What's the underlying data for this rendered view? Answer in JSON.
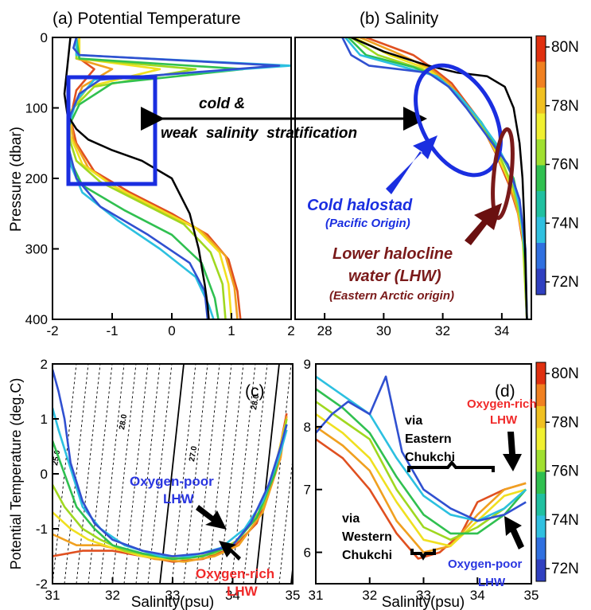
{
  "chart_data": [
    {
      "panel": "a",
      "type": "line",
      "title": "(a) Potential Temperature",
      "ylabel": "Pressure (dbar)",
      "xlim": [
        -2,
        2
      ],
      "ylim": [
        400,
        0
      ],
      "xticks": [
        "-2",
        "-1",
        "0",
        "1",
        "2"
      ],
      "yticks": [
        "0",
        "100",
        "200",
        "300",
        "400"
      ],
      "series": [
        {
          "color": "#000000",
          "x": [
            -1.7,
            -1.75,
            -1.8,
            -1.75,
            -1.6,
            -1.4,
            -1.0,
            -0.5,
            0.0,
            0.3,
            0.45,
            0.55,
            0.6,
            0.62
          ],
          "y": [
            0,
            40,
            80,
            110,
            130,
            145,
            160,
            175,
            200,
            250,
            300,
            350,
            380,
            400
          ]
        },
        {
          "color": "#3050d0",
          "x": [
            -1.6,
            -1.65,
            -1.55,
            1.8,
            -1.2,
            -1.55,
            -1.7,
            -1.75,
            -1.6,
            -1.2,
            -0.4,
            0.3,
            0.55,
            0.6
          ],
          "y": [
            0,
            15,
            25,
            40,
            60,
            80,
            110,
            150,
            200,
            240,
            280,
            320,
            360,
            400
          ]
        },
        {
          "color": "#2cc0e0",
          "x": [
            -1.6,
            -1.6,
            2.0,
            -1.3,
            -1.6,
            -1.75,
            -1.7,
            -1.5,
            -0.9,
            -0.2,
            0.4,
            0.62,
            0.7
          ],
          "y": [
            0,
            25,
            40,
            60,
            90,
            130,
            180,
            220,
            260,
            300,
            340,
            380,
            400
          ]
        },
        {
          "color": "#30c050",
          "x": [
            -1.6,
            -1.55,
            1.2,
            -1.0,
            -1.55,
            -1.75,
            -1.7,
            -1.5,
            -0.8,
            0.0,
            0.5,
            0.72,
            0.78
          ],
          "y": [
            0,
            30,
            45,
            65,
            95,
            130,
            175,
            210,
            245,
            280,
            320,
            370,
            400
          ]
        },
        {
          "color": "#a0d820",
          "x": [
            -1.6,
            -1.6,
            0.4,
            -1.3,
            -1.65,
            -1.75,
            -1.6,
            -1.2,
            -0.5,
            0.2,
            0.65,
            0.85,
            0.9
          ],
          "y": [
            0,
            30,
            45,
            70,
            100,
            135,
            175,
            205,
            235,
            265,
            305,
            350,
            400
          ]
        },
        {
          "color": "#f0e020",
          "x": [
            -1.55,
            -1.55,
            -0.2,
            -1.4,
            -1.7,
            -1.7,
            -1.5,
            -1.0,
            -0.3,
            0.4,
            0.8,
            0.95,
            1.0
          ],
          "y": [
            0,
            30,
            45,
            70,
            105,
            140,
            180,
            210,
            240,
            270,
            305,
            350,
            400
          ]
        },
        {
          "color": "#f0a020",
          "x": [
            -1.55,
            -1.6,
            -1.0,
            -1.5,
            -1.7,
            -1.65,
            -1.4,
            -0.9,
            -0.2,
            0.5,
            0.9,
            1.05,
            1.1
          ],
          "y": [
            0,
            30,
            45,
            70,
            110,
            145,
            185,
            215,
            245,
            275,
            310,
            355,
            400
          ]
        },
        {
          "color": "#e05020",
          "x": [
            -1.6,
            -1.55,
            -1.3,
            -1.6,
            -1.7,
            -1.6,
            -1.3,
            -0.7,
            0.0,
            0.6,
            0.95,
            1.1,
            1.15
          ],
          "y": [
            0,
            30,
            45,
            75,
            115,
            150,
            190,
            220,
            250,
            280,
            315,
            360,
            400
          ]
        }
      ],
      "annotations": []
    },
    {
      "panel": "b",
      "type": "line",
      "title": "(b) Salinity",
      "xlim": [
        27,
        35
      ],
      "ylim": [
        400,
        0
      ],
      "xticks": [
        "28",
        "30",
        "32",
        "34"
      ],
      "series": [
        {
          "color": "#000000",
          "x": [
            28.9,
            30.0,
            31.5,
            32.5,
            33.5,
            34.1,
            34.4,
            34.6,
            34.7,
            34.75,
            34.8,
            34.85
          ],
          "y": [
            0,
            20,
            40,
            50,
            55,
            70,
            100,
            150,
            200,
            250,
            320,
            400
          ]
        },
        {
          "color": "#3050d0",
          "x": [
            28.6,
            28.9,
            29.5,
            31.5,
            32.2,
            32.8,
            33.5,
            34.2,
            34.6,
            34.8,
            34.85
          ],
          "y": [
            0,
            25,
            40,
            50,
            70,
            100,
            140,
            180,
            230,
            300,
            400
          ]
        },
        {
          "color": "#2cc0e0",
          "x": [
            28.7,
            29.2,
            30.5,
            31.8,
            32.5,
            33.2,
            33.8,
            34.3,
            34.6,
            34.8,
            34.85
          ],
          "y": [
            0,
            25,
            40,
            55,
            80,
            115,
            150,
            190,
            240,
            310,
            400
          ]
        },
        {
          "color": "#30c050",
          "x": [
            28.8,
            29.4,
            31.0,
            31.9,
            32.6,
            33.3,
            33.9,
            34.4,
            34.65,
            34.8,
            34.85
          ],
          "y": [
            0,
            25,
            42,
            58,
            85,
            120,
            160,
            200,
            250,
            320,
            400
          ]
        },
        {
          "color": "#a0d820",
          "x": [
            28.9,
            29.8,
            31.3,
            32.0,
            32.8,
            33.5,
            34.0,
            34.4,
            34.7,
            34.85
          ],
          "y": [
            0,
            25,
            45,
            62,
            95,
            135,
            175,
            215,
            270,
            400
          ]
        },
        {
          "color": "#f0e020",
          "x": [
            29.0,
            30.2,
            31.5,
            32.1,
            33.0,
            33.6,
            34.1,
            34.5,
            34.7,
            34.85
          ],
          "y": [
            0,
            25,
            45,
            65,
            105,
            145,
            190,
            230,
            280,
            400
          ]
        },
        {
          "color": "#f0a020",
          "x": [
            29.2,
            30.6,
            31.6,
            32.2,
            33.1,
            33.7,
            34.2,
            34.5,
            34.75,
            34.85
          ],
          "y": [
            0,
            25,
            45,
            65,
            110,
            155,
            200,
            240,
            290,
            400
          ]
        },
        {
          "color": "#e05020",
          "x": [
            29.4,
            31.0,
            31.7,
            32.3,
            33.2,
            33.8,
            34.25,
            34.55,
            34.75,
            34.85
          ],
          "y": [
            0,
            25,
            45,
            65,
            115,
            165,
            210,
            250,
            300,
            400
          ]
        }
      ],
      "annotations": [
        {
          "text": "cold &",
          "color": "#000000"
        },
        {
          "text": "weak  salinity  stratification",
          "color": "#000000"
        },
        {
          "text": "Cold halostad",
          "color": "#1a2ee0"
        },
        {
          "text": "(Pacific Origin)",
          "color": "#1a2ee0"
        },
        {
          "text": "Lower halocline",
          "color": "#7a1a1a"
        },
        {
          "text": "water (LHW)",
          "color": "#7a1a1a"
        },
        {
          "text": "(Eastern Arctic origin)",
          "color": "#7a1a1a"
        }
      ]
    },
    {
      "panel": "c",
      "type": "line",
      "ylabel": "Potential Temperature (deg.C)",
      "xlabel": "Salinity(psu)",
      "tag": "(c)",
      "xlim": [
        31,
        35
      ],
      "ylim": [
        -2,
        2
      ],
      "xticks": [
        "31",
        "32",
        "33",
        "34",
        "35"
      ],
      "yticks": [
        "-2",
        "-1",
        "0",
        "1",
        "2"
      ],
      "isopycnal_labels": [
        "25.0",
        "28.0",
        "27.0",
        "28.0"
      ],
      "series": [
        {
          "color": "#3050d0",
          "x": [
            31.0,
            31.1,
            31.2,
            31.3,
            31.5,
            31.7,
            32.0,
            32.5,
            33.0,
            33.5,
            34.0,
            34.3,
            34.6,
            34.8,
            34.9
          ],
          "y": [
            1.9,
            1.5,
            1.0,
            0.2,
            -0.5,
            -0.9,
            -1.2,
            -1.4,
            -1.5,
            -1.45,
            -1.3,
            -0.9,
            -0.2,
            0.5,
            0.9
          ]
        },
        {
          "color": "#2cc0e0",
          "x": [
            31.0,
            31.1,
            31.3,
            31.5,
            31.8,
            32.2,
            32.8,
            33.3,
            33.8,
            34.2,
            34.5,
            34.8,
            34.9
          ],
          "y": [
            1.2,
            0.8,
            0.1,
            -0.6,
            -1.0,
            -1.3,
            -1.5,
            -1.5,
            -1.35,
            -1.0,
            -0.5,
            0.4,
            0.8
          ]
        },
        {
          "color": "#30c050",
          "x": [
            31.0,
            31.2,
            31.4,
            31.7,
            32.0,
            32.5,
            33.0,
            33.5,
            34.0,
            34.4,
            34.7,
            34.9
          ],
          "y": [
            0.6,
            0.0,
            -0.6,
            -1.0,
            -1.3,
            -1.45,
            -1.55,
            -1.5,
            -1.3,
            -0.8,
            0.0,
            0.9
          ]
        },
        {
          "color": "#a0d820",
          "x": [
            31.0,
            31.2,
            31.5,
            31.8,
            32.2,
            32.7,
            33.2,
            33.7,
            34.1,
            34.5,
            34.8,
            34.9
          ],
          "y": [
            -0.2,
            -0.6,
            -1.0,
            -1.2,
            -1.4,
            -1.5,
            -1.55,
            -1.45,
            -1.2,
            -0.6,
            0.4,
            1.0
          ]
        },
        {
          "color": "#f0e020",
          "x": [
            31.0,
            31.3,
            31.6,
            32.0,
            32.5,
            33.0,
            33.5,
            34.0,
            34.4,
            34.7,
            34.9
          ],
          "y": [
            -0.7,
            -1.0,
            -1.2,
            -1.35,
            -1.5,
            -1.55,
            -1.5,
            -1.3,
            -0.8,
            0.1,
            1.0
          ]
        },
        {
          "color": "#f0a020",
          "x": [
            31.0,
            31.4,
            31.8,
            32.2,
            32.7,
            33.2,
            33.7,
            34.1,
            34.5,
            34.8,
            34.9
          ],
          "y": [
            -1.1,
            -1.3,
            -1.3,
            -1.4,
            -1.55,
            -1.6,
            -1.5,
            -1.3,
            -0.7,
            0.3,
            1.05
          ]
        },
        {
          "color": "#e05020",
          "x": [
            31.0,
            31.5,
            32.0,
            32.5,
            33.0,
            33.5,
            34.0,
            34.4,
            34.7,
            34.9
          ],
          "y": [
            -1.5,
            -1.4,
            -1.4,
            -1.5,
            -1.6,
            -1.55,
            -1.35,
            -0.9,
            0.0,
            1.1
          ]
        }
      ],
      "annotations": [
        {
          "text": "Oxygen-poor",
          "color": "#2a36e0"
        },
        {
          "text": "LHW",
          "color": "#2a36e0"
        },
        {
          "text": "Oxygen-rich",
          "color": "#f02a2a"
        },
        {
          "text": "LHW",
          "color": "#f02a2a"
        }
      ]
    },
    {
      "panel": "d",
      "type": "line",
      "xlabel": "Salinity(psu)",
      "tag": "(d)",
      "xlim": [
        31,
        35
      ],
      "ylim": [
        5.5,
        9
      ],
      "xticks": [
        "31",
        "32",
        "33",
        "34",
        "35"
      ],
      "yticks": [
        "6",
        "7",
        "8",
        "9"
      ],
      "series": [
        {
          "color": "#3050d0",
          "x": [
            31.0,
            31.3,
            31.6,
            32.0,
            32.3,
            32.6,
            33.0,
            33.5,
            34.0,
            34.5,
            34.9
          ],
          "y": [
            7.9,
            8.2,
            8.4,
            8.2,
            8.8,
            7.6,
            7.0,
            6.7,
            6.5,
            6.6,
            6.8
          ]
        },
        {
          "color": "#2cc0e0",
          "x": [
            31.0,
            31.5,
            32.0,
            32.5,
            33.0,
            33.5,
            34.0,
            34.5,
            34.9
          ],
          "y": [
            8.8,
            8.5,
            8.2,
            7.5,
            6.9,
            6.6,
            6.5,
            6.7,
            7.0
          ]
        },
        {
          "color": "#30c050",
          "x": [
            31.0,
            31.5,
            32.0,
            32.5,
            33.0,
            33.5,
            34.0,
            34.5,
            34.9
          ],
          "y": [
            8.6,
            8.3,
            7.9,
            7.2,
            6.6,
            6.3,
            6.3,
            6.6,
            7.0
          ]
        },
        {
          "color": "#a0d820",
          "x": [
            31.0,
            31.5,
            32.0,
            32.5,
            33.0,
            33.5,
            34.0,
            34.5,
            34.9
          ],
          "y": [
            8.4,
            8.1,
            7.8,
            7.0,
            6.4,
            6.2,
            6.4,
            6.7,
            7.0
          ]
        },
        {
          "color": "#f0e020",
          "x": [
            31.0,
            31.5,
            32.0,
            32.5,
            33.0,
            33.5,
            34.0,
            34.5,
            34.9
          ],
          "y": [
            8.2,
            7.9,
            7.5,
            6.8,
            6.2,
            6.1,
            6.5,
            6.9,
            7.0
          ]
        },
        {
          "color": "#f0a020",
          "x": [
            31.0,
            31.5,
            32.0,
            32.5,
            33.0,
            33.5,
            34.0,
            34.5,
            34.9
          ],
          "y": [
            8.0,
            7.7,
            7.3,
            6.5,
            6.0,
            6.1,
            6.6,
            7.0,
            7.1
          ]
        },
        {
          "color": "#e05020",
          "x": [
            31.0,
            31.5,
            32.0,
            32.5,
            32.9,
            33.3,
            33.7,
            34.0,
            34.5,
            34.9
          ],
          "y": [
            7.8,
            7.5,
            7.0,
            6.3,
            5.9,
            6.0,
            6.3,
            6.8,
            7.0,
            7.1
          ]
        }
      ],
      "annotations": [
        {
          "text": "via",
          "color": "#000000"
        },
        {
          "text": "Eastern",
          "color": "#000000"
        },
        {
          "text": "Chukchi",
          "color": "#000000"
        },
        {
          "text": "via",
          "color": "#000000"
        },
        {
          "text": "Western",
          "color": "#000000"
        },
        {
          "text": "Chukchi",
          "color": "#000000"
        },
        {
          "text": "Oxygen-rich",
          "color": "#f02a2a"
        },
        {
          "text": "LHW",
          "color": "#f02a2a"
        },
        {
          "text": "Oxygen-poor",
          "color": "#2a36e0"
        },
        {
          "text": "LHW",
          "color": "#2a36e0"
        }
      ]
    }
  ],
  "colorbar": {
    "labels": [
      "80N",
      "78N",
      "76N",
      "74N",
      "72N"
    ],
    "colors": [
      "#e03010",
      "#f08020",
      "#f0c020",
      "#f0f030",
      "#a0e030",
      "#30c050",
      "#20c0a0",
      "#30c0e0",
      "#3070e0",
      "#3040c0"
    ]
  }
}
